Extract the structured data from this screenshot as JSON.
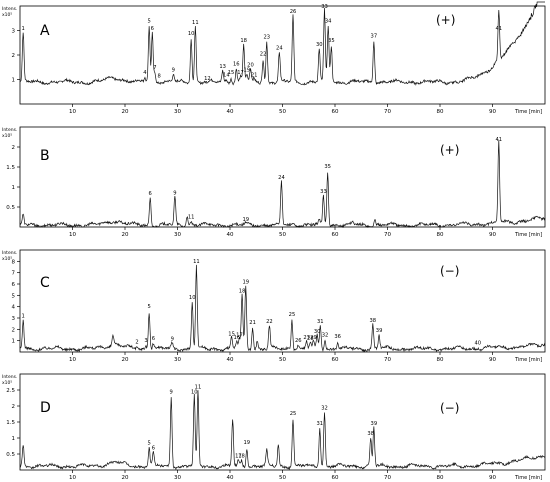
{
  "chart_data": [
    {
      "type": "line",
      "panel_label": "A",
      "mode": "(+)",
      "y_unit_top": "Intens.",
      "y_unit_bottom": "x10⁵",
      "x_unit": "Time [min]",
      "xlim": [
        0,
        100
      ],
      "x_ticks": [
        10,
        20,
        30,
        40,
        50,
        60,
        70,
        80,
        90
      ],
      "ylim": [
        0,
        4
      ],
      "y_ticks": [
        1,
        2,
        3
      ],
      "baseline": 0.9,
      "drift": {
        "start": 82,
        "end": 99,
        "end_value": 4.3
      },
      "peaks": [
        {
          "label": "1",
          "t": 0.6,
          "h": 2.9
        },
        {
          "label": "4",
          "t": 23.8,
          "h": 1.1
        },
        {
          "label": "5",
          "t": 24.6,
          "h": 3.2
        },
        {
          "label": "6",
          "t": 25.2,
          "h": 2.9
        },
        {
          "label": "7",
          "t": 25.7,
          "h": 1.3
        },
        {
          "label": "8",
          "t": 26.5,
          "h": 0.95
        },
        {
          "label": "9",
          "t": 29.2,
          "h": 1.2
        },
        {
          "label": "10",
          "t": 32.6,
          "h": 2.7
        },
        {
          "label": "11",
          "t": 33.4,
          "h": 3.15
        },
        {
          "label": "12",
          "t": 35.7,
          "h": 0.85
        },
        {
          "label": "13",
          "t": 38.6,
          "h": 1.35
        },
        {
          "label": "14",
          "t": 39.3,
          "h": 1.0
        },
        {
          "label": "15",
          "t": 40.2,
          "h": 1.1
        },
        {
          "label": "16",
          "t": 41.2,
          "h": 1.45
        },
        {
          "label": "17",
          "t": 42.0,
          "h": 1.1
        },
        {
          "label": "18",
          "t": 42.6,
          "h": 2.4
        },
        {
          "label": "19",
          "t": 43.2,
          "h": 1.2
        },
        {
          "label": "20",
          "t": 43.9,
          "h": 1.4
        },
        {
          "label": "21",
          "t": 44.6,
          "h": 1.0
        },
        {
          "label": "22",
          "t": 46.3,
          "h": 1.85
        },
        {
          "label": "23",
          "t": 47.0,
          "h": 2.55
        },
        {
          "label": "24",
          "t": 49.4,
          "h": 2.1
        },
        {
          "label": "26",
          "t": 52.0,
          "h": 3.6
        },
        {
          "label": "30",
          "t": 57.0,
          "h": 2.25
        },
        {
          "label": "33",
          "t": 58.0,
          "h": 3.8
        },
        {
          "label": "34",
          "t": 58.7,
          "h": 3.2
        },
        {
          "label": "35",
          "t": 59.3,
          "h": 2.4
        },
        {
          "label": "37",
          "t": 67.4,
          "h": 2.6
        },
        {
          "label": "41",
          "t": 91.2,
          "h": 2.9
        }
      ]
    },
    {
      "type": "line",
      "panel_label": "B",
      "mode": "(+)",
      "y_unit_top": "Intens.",
      "y_unit_bottom": "x10⁵",
      "x_unit": "Time [min]",
      "xlim": [
        0,
        100
      ],
      "x_ticks": [
        10,
        20,
        30,
        40,
        50,
        60,
        70,
        80,
        90
      ],
      "ylim": [
        0,
        2.5
      ],
      "y_ticks": [
        0.5,
        1.0,
        1.5,
        2.0
      ],
      "baseline": 0.05,
      "drift": {
        "start": 78,
        "end": 99,
        "end_value": 0.2
      },
      "peaks": [
        {
          "label": "",
          "t": 0.6,
          "h": 0.3
        },
        {
          "label": "6",
          "t": 24.8,
          "h": 0.73
        },
        {
          "label": "9",
          "t": 29.5,
          "h": 0.74
        },
        {
          "label": "",
          "t": 31.8,
          "h": 0.3
        },
        {
          "label": "11",
          "t": 32.6,
          "h": 0.14
        },
        {
          "label": "19",
          "t": 43.0,
          "h": 0.08
        },
        {
          "label": "24",
          "t": 49.8,
          "h": 1.12
        },
        {
          "label": "",
          "t": 52.0,
          "h": 0.1
        },
        {
          "label": "",
          "t": 57.0,
          "h": 0.15
        },
        {
          "label": "33",
          "t": 57.8,
          "h": 0.78
        },
        {
          "label": "35",
          "t": 58.6,
          "h": 1.4
        },
        {
          "label": "",
          "t": 63.4,
          "h": 0.12
        },
        {
          "label": "",
          "t": 67.6,
          "h": 0.2
        },
        {
          "label": "41",
          "t": 91.2,
          "h": 2.08
        }
      ]
    },
    {
      "type": "line",
      "panel_label": "C",
      "mode": "(−)",
      "y_unit_top": "Intens.",
      "y_unit_bottom": "x10⁵",
      "x_unit": "Time [min]",
      "xlim": [
        0,
        100
      ],
      "x_ticks": [
        10,
        20,
        30,
        40,
        50,
        60,
        70,
        80,
        90
      ],
      "ylim": [
        0,
        9
      ],
      "y_ticks": [
        1,
        2,
        3,
        4,
        5,
        6,
        7,
        8
      ],
      "baseline": 0.3,
      "drift": {
        "start": 80,
        "end": 99,
        "end_value": 0.6
      },
      "peaks": [
        {
          "label": "1",
          "t": 0.6,
          "h": 2.8
        },
        {
          "label": "",
          "t": 17.7,
          "h": 1.2
        },
        {
          "label": "2",
          "t": 22.3,
          "h": 0.5
        },
        {
          "label": "3",
          "t": 24.0,
          "h": 0.6
        },
        {
          "label": "5",
          "t": 24.6,
          "h": 3.6
        },
        {
          "label": "6",
          "t": 25.4,
          "h": 0.8
        },
        {
          "label": "9",
          "t": 29.0,
          "h": 0.75
        },
        {
          "label": "10",
          "t": 32.8,
          "h": 4.4
        },
        {
          "label": "11",
          "t": 33.6,
          "h": 7.6
        },
        {
          "label": "15",
          "t": 40.3,
          "h": 1.2
        },
        {
          "label": "16",
          "t": 41.3,
          "h": 0.9
        },
        {
          "label": "17",
          "t": 41.8,
          "h": 1.1
        },
        {
          "label": "18",
          "t": 42.3,
          "h": 5.0
        },
        {
          "label": "19",
          "t": 43.0,
          "h": 5.8
        },
        {
          "label": "21",
          "t": 44.3,
          "h": 2.2
        },
        {
          "label": "",
          "t": 45.2,
          "h": 1.0
        },
        {
          "label": "22",
          "t": 47.5,
          "h": 2.3
        },
        {
          "label": "25",
          "t": 51.8,
          "h": 2.9
        },
        {
          "label": "26",
          "t": 53.0,
          "h": 0.6
        },
        {
          "label": "27",
          "t": 54.6,
          "h": 0.9
        },
        {
          "label": "28",
          "t": 55.3,
          "h": 0.8
        },
        {
          "label": "29",
          "t": 55.9,
          "h": 0.9
        },
        {
          "label": "30",
          "t": 56.6,
          "h": 1.4
        },
        {
          "label": "31",
          "t": 57.2,
          "h": 2.3
        },
        {
          "label": "32",
          "t": 58.1,
          "h": 1.1
        },
        {
          "label": "36",
          "t": 60.5,
          "h": 0.95
        },
        {
          "label": "38",
          "t": 67.2,
          "h": 2.4
        },
        {
          "label": "39",
          "t": 68.4,
          "h": 1.5
        },
        {
          "label": "40",
          "t": 87.2,
          "h": 0.4
        }
      ]
    },
    {
      "type": "line",
      "panel_label": "D",
      "mode": "(−)",
      "y_unit_top": "Intens.",
      "y_unit_bottom": "x10⁵",
      "x_unit": "Time [min]",
      "xlim": [
        0,
        100
      ],
      "x_ticks": [
        10,
        20,
        30,
        40,
        50,
        60,
        70,
        80,
        90
      ],
      "ylim": [
        0,
        3
      ],
      "y_ticks": [
        0.5,
        1.0,
        1.5,
        2.0,
        2.5
      ],
      "baseline": 0.12,
      "drift": {
        "start": 80,
        "end": 99,
        "end_value": 0.42
      },
      "peaks": [
        {
          "label": "",
          "t": 0.6,
          "h": 0.8
        },
        {
          "label": "5",
          "t": 24.6,
          "h": 0.7
        },
        {
          "label": "6",
          "t": 25.4,
          "h": 0.55
        },
        {
          "label": "9",
          "t": 28.8,
          "h": 2.3
        },
        {
          "label": "10",
          "t": 33.2,
          "h": 2.3
        },
        {
          "label": "11",
          "t": 33.9,
          "h": 2.45
        },
        {
          "label": "",
          "t": 40.5,
          "h": 1.6
        },
        {
          "label": "17",
          "t": 41.6,
          "h": 0.3
        },
        {
          "label": "18",
          "t": 42.2,
          "h": 0.3
        },
        {
          "label": "19",
          "t": 43.2,
          "h": 0.72
        },
        {
          "label": "",
          "t": 47.0,
          "h": 0.6
        },
        {
          "label": "",
          "t": 49.2,
          "h": 0.8
        },
        {
          "label": "25",
          "t": 52.0,
          "h": 1.62
        },
        {
          "label": "31",
          "t": 57.1,
          "h": 1.32
        },
        {
          "label": "32",
          "t": 58.0,
          "h": 1.8
        },
        {
          "label": "38",
          "t": 66.8,
          "h": 1.0
        },
        {
          "label": "39",
          "t": 67.4,
          "h": 1.32
        }
      ]
    }
  ]
}
